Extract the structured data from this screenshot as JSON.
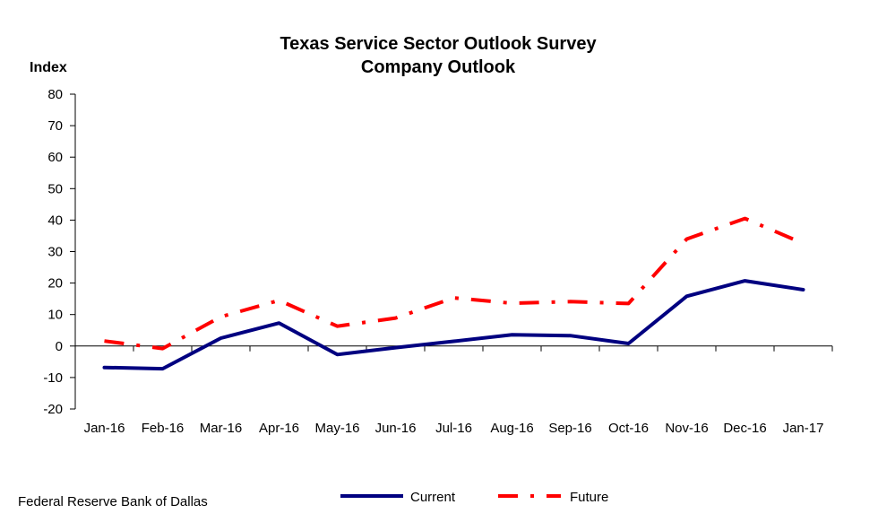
{
  "chart_data": {
    "type": "line",
    "title": [
      "Texas Service Sector Outlook Survey",
      "Company Outlook"
    ],
    "ylabel": "Index",
    "xlabel": "",
    "ylim": [
      -20,
      80
    ],
    "yticks": [
      -20,
      -10,
      0,
      10,
      20,
      30,
      40,
      50,
      60,
      70,
      80
    ],
    "categories": [
      "Jan-16",
      "Feb-16",
      "Mar-16",
      "Apr-16",
      "May-16",
      "Jun-16",
      "Jul-16",
      "Aug-16",
      "Sep-16",
      "Oct-16",
      "Nov-16",
      "Dec-16",
      "Jan-17"
    ],
    "series": [
      {
        "name": "Current",
        "color": "#000080",
        "style": "solid",
        "values": [
          -6.8,
          -7.2,
          2.5,
          7.3,
          -2.7,
          -0.5,
          1.5,
          3.6,
          3.3,
          0.8,
          15.8,
          20.7,
          17.9
        ]
      },
      {
        "name": "Future",
        "color": "#ff0000",
        "style": "dash-dot",
        "values": [
          1.6,
          -0.8,
          9.3,
          14.5,
          6.3,
          8.9,
          15.3,
          13.6,
          14.1,
          13.5,
          34.0,
          40.5,
          32.6
        ]
      }
    ],
    "grid": false,
    "legend": "bottom"
  },
  "footer": {
    "source": "Federal Reserve Bank of Dallas"
  }
}
